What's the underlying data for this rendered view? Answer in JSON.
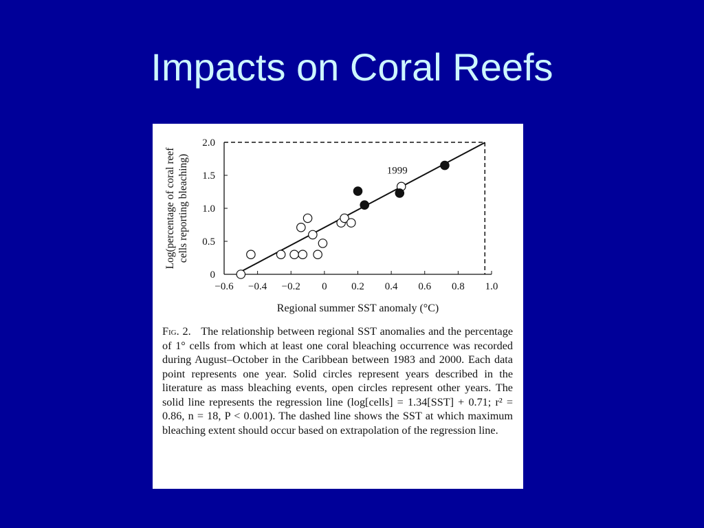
{
  "slide": {
    "title": "Impacts on Coral Reefs"
  },
  "figure": {
    "caption_label": "Fig. 2.",
    "caption_text": "The relationship between regional SST anomalies and the percentage of 1° cells from which at least one coral bleaching occurrence was recorded during August–October in the Caribbean between 1983 and 2000. Each data point represents one year. Solid circles represent years described in the literature as mass bleaching events, open circles represent other years. The solid line represents the regression line (log[cells] = 1.34[SST] + 0.71; r² = 0.86, n = 18, P < 0.001). The dashed line shows the SST at which maximum bleaching extent should occur based on extrapolation of the regression line."
  },
  "chart_data": {
    "type": "scatter",
    "xlabel": "Regional summer SST anomaly (°C)",
    "ylabel_line1": "Log(percentage of coral reef",
    "ylabel_line2": "cells reporting bleaching)",
    "xlim": [
      -0.6,
      1.0
    ],
    "ylim": [
      0,
      2.0
    ],
    "x_ticks": [
      -0.6,
      -0.4,
      -0.2,
      0,
      0.2,
      0.4,
      0.6,
      0.8,
      1.0
    ],
    "x_tick_labels": [
      "−0.6",
      "−0.4",
      "−0.2",
      "0",
      "0.2",
      "0.4",
      "0.6",
      "0.8",
      "1.0"
    ],
    "y_ticks": [
      0,
      0.5,
      1.0,
      1.5,
      2.0
    ],
    "y_tick_labels": [
      "0",
      "0.5",
      "1.0",
      "1.5",
      "2.0"
    ],
    "annotation": "1999",
    "annotation_point": {
      "x": 0.46,
      "y": 1.33
    },
    "series": [
      {
        "marker": "open",
        "points": [
          {
            "x": -0.5,
            "y": 0.0
          },
          {
            "x": -0.44,
            "y": 0.3
          },
          {
            "x": -0.26,
            "y": 0.3
          },
          {
            "x": -0.18,
            "y": 0.3
          },
          {
            "x": -0.13,
            "y": 0.3
          },
          {
            "x": -0.14,
            "y": 0.71
          },
          {
            "x": -0.1,
            "y": 0.85
          },
          {
            "x": -0.07,
            "y": 0.6
          },
          {
            "x": -0.04,
            "y": 0.3
          },
          {
            "x": -0.01,
            "y": 0.47
          },
          {
            "x": 0.1,
            "y": 0.78
          },
          {
            "x": 0.12,
            "y": 0.85
          },
          {
            "x": 0.16,
            "y": 0.78
          },
          {
            "x": 0.46,
            "y": 1.33
          }
        ]
      },
      {
        "marker": "solid",
        "points": [
          {
            "x": 0.2,
            "y": 1.26
          },
          {
            "x": 0.24,
            "y": 1.05
          },
          {
            "x": 0.45,
            "y": 1.23
          },
          {
            "x": 0.72,
            "y": 1.65
          }
        ]
      }
    ],
    "regression_line": {
      "slope": 1.34,
      "intercept": 0.71,
      "x_range": [
        -0.5,
        0.96
      ]
    },
    "dashed_extrapolation": {
      "x": 0.96,
      "y": 2.0
    }
  }
}
